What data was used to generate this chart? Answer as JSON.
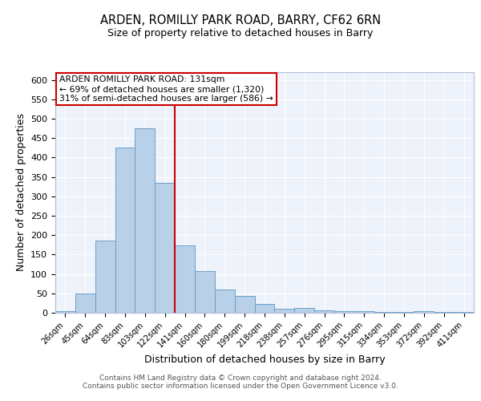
{
  "title1": "ARDEN, ROMILLY PARK ROAD, BARRY, CF62 6RN",
  "title2": "Size of property relative to detached houses in Barry",
  "xlabel": "Distribution of detached houses by size in Barry",
  "ylabel": "Number of detached properties",
  "categories": [
    "26sqm",
    "45sqm",
    "64sqm",
    "83sqm",
    "103sqm",
    "122sqm",
    "141sqm",
    "160sqm",
    "180sqm",
    "199sqm",
    "218sqm",
    "238sqm",
    "257sqm",
    "276sqm",
    "295sqm",
    "315sqm",
    "334sqm",
    "353sqm",
    "372sqm",
    "392sqm",
    "411sqm"
  ],
  "values": [
    5,
    50,
    187,
    425,
    475,
    335,
    174,
    108,
    59,
    44,
    22,
    10,
    12,
    6,
    4,
    4,
    2,
    2,
    5,
    2,
    3
  ],
  "bar_color": "#b8d0e8",
  "bar_edge_color": "#6a9fc8",
  "property_line_x": 5.5,
  "annotation_line1": "ARDEN ROMILLY PARK ROAD: 131sqm",
  "annotation_line2": "← 69% of detached houses are smaller (1,320)",
  "annotation_line3": "31% of semi-detached houses are larger (586) →",
  "vline_color": "#cc0000",
  "annotation_box_color": "#ffffff",
  "annotation_box_edge": "#cc0000",
  "background_color": "#eef2fa",
  "grid_color": "#ffffff",
  "footer1": "Contains HM Land Registry data © Crown copyright and database right 2024.",
  "footer2": "Contains public sector information licensed under the Open Government Licence v3.0.",
  "ylim": [
    0,
    620
  ],
  "yticks": [
    0,
    50,
    100,
    150,
    200,
    250,
    300,
    350,
    400,
    450,
    500,
    550,
    600
  ]
}
